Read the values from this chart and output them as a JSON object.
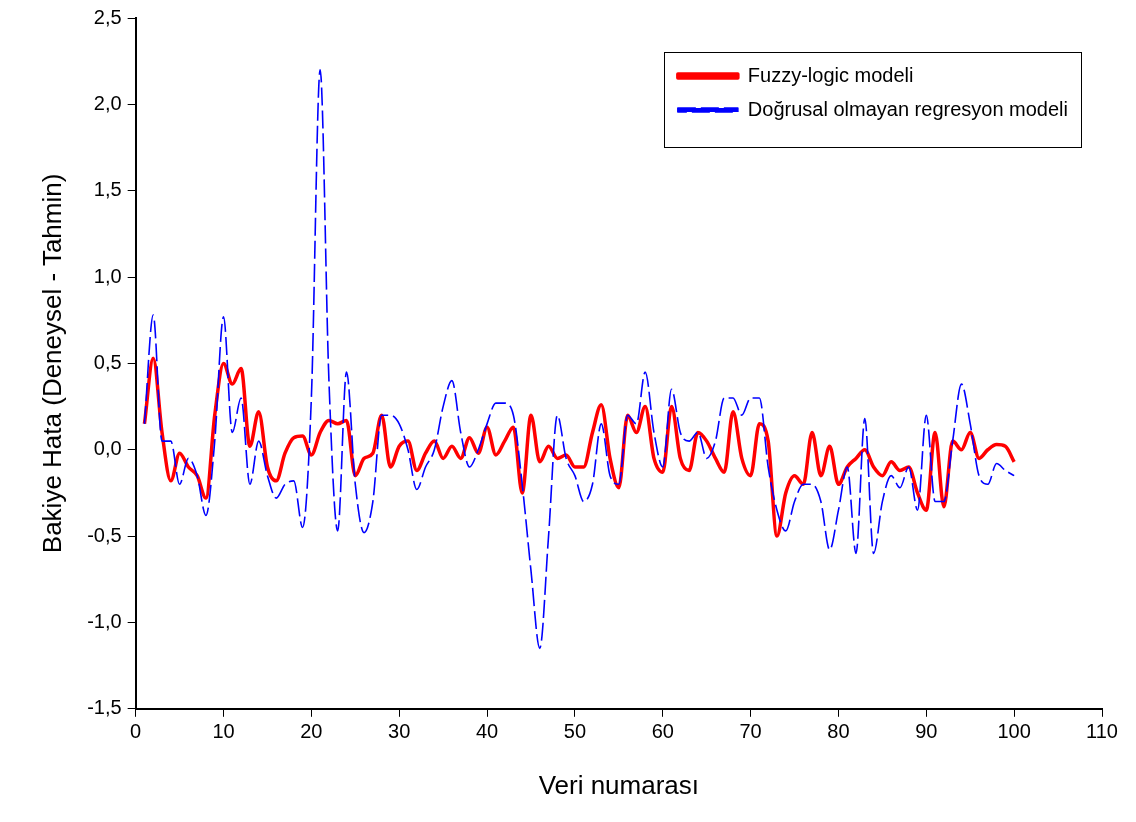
{
  "chart_data": {
    "type": "line",
    "xlabel": "Veri numarası",
    "ylabel": "Bakiye Hata (Deneysel - Tahmin)",
    "x": [
      1,
      2,
      3,
      4,
      5,
      6,
      7,
      8,
      9,
      10,
      11,
      12,
      13,
      14,
      15,
      16,
      17,
      18,
      19,
      20,
      21,
      22,
      23,
      24,
      25,
      26,
      27,
      28,
      29,
      30,
      31,
      32,
      33,
      34,
      35,
      36,
      37,
      38,
      39,
      40,
      41,
      42,
      43,
      44,
      45,
      46,
      47,
      48,
      49,
      50,
      51,
      52,
      53,
      54,
      55,
      56,
      57,
      58,
      59,
      60,
      61,
      62,
      63,
      64,
      65,
      66,
      67,
      68,
      69,
      70,
      71,
      72,
      73,
      74,
      75,
      76,
      77,
      78,
      79,
      80,
      81,
      82,
      83,
      84,
      85,
      86,
      87,
      88,
      89,
      90,
      91,
      92,
      93,
      94,
      95,
      96,
      97,
      98,
      99,
      100
    ],
    "xlim": [
      0,
      110
    ],
    "xticks": [
      0,
      10,
      20,
      30,
      40,
      50,
      60,
      70,
      80,
      90,
      100,
      110
    ],
    "ylim": [
      -1.5,
      2.5
    ],
    "yticks": [
      {
        "value": -1.5,
        "label": "-1,5"
      },
      {
        "value": -1,
        "label": "-1,0"
      },
      {
        "value": -0.5,
        "label": "-0,5"
      },
      {
        "value": 0,
        "label": "0,0"
      },
      {
        "value": 0.5,
        "label": "0,5"
      },
      {
        "value": 1,
        "label": "1,0"
      },
      {
        "value": 1.5,
        "label": "1,5"
      },
      {
        "value": 2,
        "label": "2,0"
      },
      {
        "value": 2.5,
        "label": "2,5"
      }
    ],
    "grid": false,
    "legend": "top right",
    "marker": "none",
    "series": [
      {
        "name": "Fuzzy-logic modeli",
        "color": "#ff0000",
        "line_style": "solid",
        "values": [
          0.15,
          0.53,
          0.1,
          -0.18,
          -0.02,
          -0.1,
          -0.15,
          -0.28,
          0.2,
          0.5,
          0.38,
          0.47,
          0.02,
          0.22,
          -0.1,
          -0.18,
          -0.02,
          0.07,
          0.08,
          -0.03,
          0.1,
          0.17,
          0.15,
          0.17,
          -0.15,
          -0.05,
          -0.02,
          0.2,
          -0.1,
          0.02,
          0.05,
          -0.12,
          -0.02,
          0.05,
          -0.05,
          0.02,
          -0.05,
          0.07,
          -0.02,
          0.13,
          -0.03,
          0.05,
          0.13,
          -0.25,
          0.2,
          -0.07,
          0.02,
          -0.05,
          -0.03,
          -0.1,
          -0.1,
          0.1,
          0.26,
          -0.05,
          -0.22,
          0.2,
          0.1,
          0.25,
          -0.05,
          -0.13,
          0.25,
          -0.05,
          -0.12,
          0.1,
          0.05,
          -0.05,
          -0.13,
          0.22,
          -0.05,
          -0.15,
          0.15,
          0.05,
          -0.5,
          -0.25,
          -0.15,
          -0.2,
          0.1,
          -0.15,
          0.02,
          -0.2,
          -0.1,
          -0.05,
          0,
          -0.1,
          -0.15,
          -0.07,
          -0.12,
          -0.1,
          -0.25,
          -0.35,
          0.1,
          -0.33,
          0.05,
          0,
          0.1,
          -0.05,
          0,
          0.03,
          0.02,
          -0.07
        ]
      },
      {
        "name": "Doğrusal olmayan regresyon modeli",
        "color": "#0000ff",
        "line_style": "dashed",
        "values": [
          0.15,
          0.78,
          0.05,
          0.05,
          -0.2,
          -0.05,
          -0.15,
          -0.38,
          0.05,
          0.77,
          0.1,
          0.3,
          -0.2,
          0.05,
          -0.15,
          -0.28,
          -0.2,
          -0.18,
          -0.45,
          0.3,
          2.2,
          0.4,
          -0.47,
          0.45,
          -0.2,
          -0.48,
          -0.3,
          0.2,
          0.2,
          0.15,
          0,
          -0.23,
          -0.1,
          0,
          0.25,
          0.4,
          0.1,
          -0.1,
          0,
          0.15,
          0.27,
          0.27,
          0.2,
          -0.2,
          -0.7,
          -1.15,
          -0.5,
          0.2,
          -0.05,
          -0.15,
          -0.3,
          -0.2,
          0.15,
          -0.15,
          -0.2,
          0.2,
          0.15,
          0.45,
          0.1,
          -0.1,
          0.35,
          0.1,
          0.05,
          0.1,
          -0.05,
          0.05,
          0.3,
          0.3,
          0.2,
          0.3,
          0.3,
          -0.1,
          -0.35,
          -0.47,
          -0.3,
          -0.2,
          -0.2,
          -0.3,
          -0.58,
          -0.35,
          -0.1,
          -0.6,
          0.18,
          -0.6,
          -0.3,
          -0.15,
          -0.22,
          -0.1,
          -0.35,
          0.2,
          -0.3,
          -0.3,
          0.05,
          0.38,
          0.15,
          -0.15,
          -0.2,
          -0.08,
          -0.12,
          -0.15
        ]
      }
    ]
  }
}
